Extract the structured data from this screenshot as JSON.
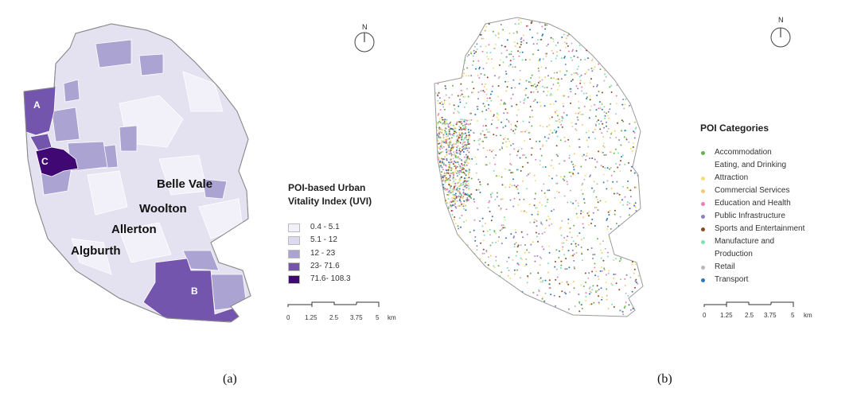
{
  "map_a": {
    "places": [
      "Belle Vale",
      "Woolton",
      "Allerton",
      "Algburth"
    ],
    "regions": [
      "A",
      "B",
      "C"
    ],
    "north_label": "N",
    "legend": {
      "title_line1": "POI-based Urban",
      "title_line2": "Vitality Index (UVI)",
      "classes": [
        {
          "label": "0.4 - 5.1",
          "color": "#f2f0f8"
        },
        {
          "label": "5.1 - 12",
          "color": "#dcdaee"
        },
        {
          "label": "12 - 23",
          "color": "#aba3d2"
        },
        {
          "label": "23- 71.6",
          "color": "#7455ad"
        },
        {
          "label": "71.6- 108.3",
          "color": "#3f0873"
        }
      ]
    },
    "scale": {
      "ticks": [
        "0",
        "1.25",
        "2.5",
        "3.75",
        "5"
      ],
      "unit": "km"
    },
    "caption": "(a)"
  },
  "map_b": {
    "north_label": "N",
    "legend": {
      "title": "POI Categories",
      "categories": [
        {
          "label": "Accommodation",
          "color": "#6ab04c"
        },
        {
          "label": "Eating, and Drinking",
          "color": ""
        },
        {
          "label": "Attraction",
          "color": "#f3e27a"
        },
        {
          "label": "Commercial Services",
          "color": "#f5c97a"
        },
        {
          "label": "Education and Health",
          "color": "#ec7fb5"
        },
        {
          "label": "Public Infrastructure",
          "color": "#8c7fc1"
        },
        {
          "label": "Sports and Entertainment",
          "color": "#8b4a1f"
        },
        {
          "label": "Manufacture and",
          "color": "#7fe0b0"
        },
        {
          "label": "Production",
          "color": ""
        },
        {
          "label": "Retail",
          "color": "#b8b8b8"
        },
        {
          "label": "Transport",
          "color": "#2a78b5"
        }
      ]
    },
    "scale": {
      "ticks": [
        "0",
        "1.25",
        "2.5",
        "3.75",
        "5"
      ],
      "unit": "km"
    },
    "caption": "(b)"
  }
}
